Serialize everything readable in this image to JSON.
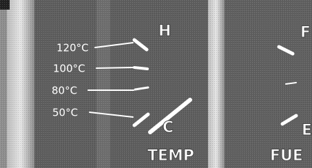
{
  "left_gauge": {
    "scale_labels": [
      "120°C",
      "100°C",
      "80°C",
      "50°C"
    ],
    "high": "H",
    "low": "C",
    "name": "TEMP"
  },
  "right_gauge": {
    "high": "F",
    "low": "E",
    "name": "FUE"
  }
}
